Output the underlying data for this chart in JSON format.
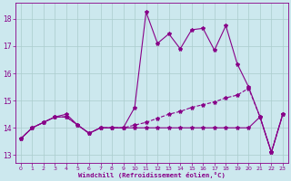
{
  "x": [
    0,
    1,
    2,
    3,
    4,
    5,
    6,
    7,
    8,
    9,
    10,
    11,
    12,
    13,
    14,
    15,
    16,
    17,
    18,
    19,
    20,
    21,
    22,
    23
  ],
  "line1": [
    13.6,
    14.0,
    14.2,
    14.4,
    14.4,
    14.1,
    13.8,
    14.0,
    14.0,
    14.0,
    14.0,
    14.0,
    14.0,
    14.0,
    14.0,
    14.0,
    14.0,
    14.0,
    14.0,
    14.0,
    14.0,
    14.4,
    13.1,
    14.5
  ],
  "line2": [
    13.6,
    14.0,
    14.2,
    14.4,
    14.4,
    14.1,
    13.8,
    14.0,
    14.0,
    14.0,
    14.1,
    14.2,
    14.35,
    14.5,
    14.6,
    14.75,
    14.85,
    14.95,
    15.1,
    15.2,
    15.45,
    14.4,
    13.1,
    14.5
  ],
  "line3": [
    13.6,
    14.0,
    14.2,
    14.4,
    14.5,
    14.1,
    13.8,
    14.0,
    14.0,
    14.0,
    14.75,
    18.25,
    17.1,
    17.45,
    16.9,
    17.6,
    17.65,
    16.85,
    17.75,
    16.35,
    15.5,
    14.4,
    13.1,
    14.5
  ],
  "line_color": "#880088",
  "bg_color": "#cce8ee",
  "grid_color": "#aacccc",
  "xlabel": "Windchill (Refroidissement éolien,°C)",
  "xlim": [
    -0.5,
    23.5
  ],
  "ylim": [
    12.7,
    18.6
  ],
  "yticks": [
    13,
    14,
    15,
    16,
    17,
    18
  ],
  "xticks": [
    0,
    1,
    2,
    3,
    4,
    5,
    6,
    7,
    8,
    9,
    10,
    11,
    12,
    13,
    14,
    15,
    16,
    17,
    18,
    19,
    20,
    21,
    22,
    23
  ],
  "markersize": 3,
  "linewidth": 0.8
}
